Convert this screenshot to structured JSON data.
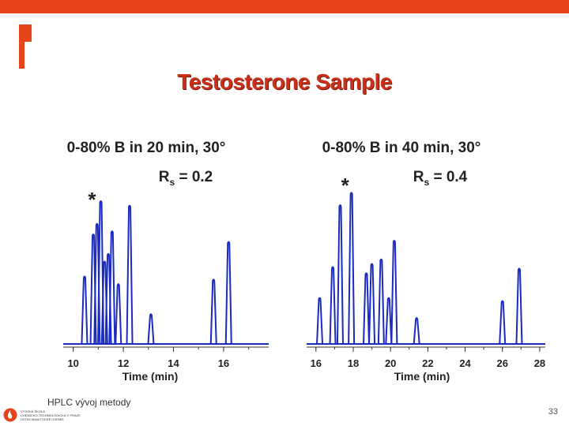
{
  "slide": {
    "title": "Testosterone Sample",
    "footer": "HPLC vývoj metody",
    "footer_org": [
      "VYSOKÁ ŠKOLA",
      "CHEMICKO-TECHNOLOGICKÁ V PRAZE",
      "ÚSTAV ANALYTICKÉ CHEMIE"
    ],
    "page_number": "33",
    "accent_color": "#e8431a",
    "trace_color": "#1a2bbf"
  },
  "chart_data": [
    {
      "type": "line",
      "title": "0-80% B in 20 min, 30°",
      "annotation": "Rs = 0.2",
      "annotation_main": "R",
      "annotation_sub": "s",
      "annotation_rest": " = 0.2",
      "marker": "*",
      "marker_time": 11.0,
      "xlabel": "Time (min)",
      "xlim": [
        9.6,
        17.8
      ],
      "xticks": [
        10,
        12,
        14,
        16
      ],
      "ylim": [
        0,
        1
      ],
      "peaks": [
        {
          "t": 10.45,
          "h": 0.45
        },
        {
          "t": 10.8,
          "h": 0.73
        },
        {
          "t": 10.95,
          "h": 0.8
        },
        {
          "t": 11.1,
          "h": 0.95
        },
        {
          "t": 11.25,
          "h": 0.55
        },
        {
          "t": 11.4,
          "h": 0.6
        },
        {
          "t": 11.55,
          "h": 0.75
        },
        {
          "t": 11.8,
          "h": 0.4
        },
        {
          "t": 12.25,
          "h": 0.92
        },
        {
          "t": 13.1,
          "h": 0.2
        },
        {
          "t": 15.6,
          "h": 0.43
        },
        {
          "t": 16.2,
          "h": 0.68
        }
      ]
    },
    {
      "type": "line",
      "title": "0-80% B in 40 min, 30°",
      "annotation": "Rs = 0.4",
      "annotation_main": "R",
      "annotation_sub": "s",
      "annotation_rest": " = 0.4",
      "marker": "*",
      "marker_time": 17.9,
      "xlabel": "Time (min)",
      "xlim": [
        15.5,
        28.3
      ],
      "xticks": [
        16,
        18,
        20,
        22,
        24,
        26,
        28
      ],
      "ylim": [
        0,
        1
      ],
      "peaks": [
        {
          "t": 16.2,
          "h": 0.3
        },
        {
          "t": 16.9,
          "h": 0.5
        },
        {
          "t": 17.3,
          "h": 0.9
        },
        {
          "t": 17.9,
          "h": 0.98
        },
        {
          "t": 18.7,
          "h": 0.46
        },
        {
          "t": 19.0,
          "h": 0.52
        },
        {
          "t": 19.5,
          "h": 0.55
        },
        {
          "t": 19.9,
          "h": 0.3
        },
        {
          "t": 20.2,
          "h": 0.67
        },
        {
          "t": 21.4,
          "h": 0.17
        },
        {
          "t": 26.0,
          "h": 0.28
        },
        {
          "t": 26.9,
          "h": 0.49
        }
      ]
    }
  ]
}
